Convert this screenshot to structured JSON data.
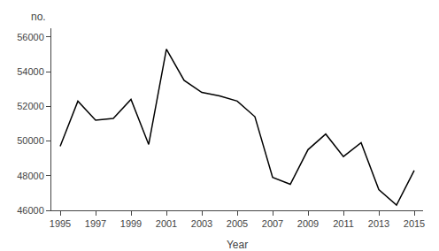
{
  "chart_data": {
    "type": "line",
    "x": [
      1995,
      1996,
      1997,
      1998,
      1999,
      2000,
      2001,
      2002,
      2003,
      2004,
      2005,
      2006,
      2007,
      2008,
      2009,
      2010,
      2011,
      2012,
      2013,
      2014,
      2015
    ],
    "values": [
      49700,
      52300,
      51200,
      51300,
      52400,
      49800,
      55300,
      53500,
      52800,
      52600,
      52300,
      51400,
      47900,
      47500,
      49500,
      50400,
      49100,
      49900,
      47200,
      46300,
      48300
    ],
    "color": "#000000",
    "xlabel": "Year",
    "ylabel": "no.",
    "xlim": [
      1994.5,
      2015.5
    ],
    "xticks": [
      1995,
      1997,
      1999,
      2001,
      2003,
      2005,
      2007,
      2009,
      2011,
      2013,
      2015
    ],
    "ylim": [
      46000,
      56500
    ],
    "yticks": [
      46000,
      48000,
      50000,
      52000,
      54000,
      56000
    ],
    "grid": false
  }
}
